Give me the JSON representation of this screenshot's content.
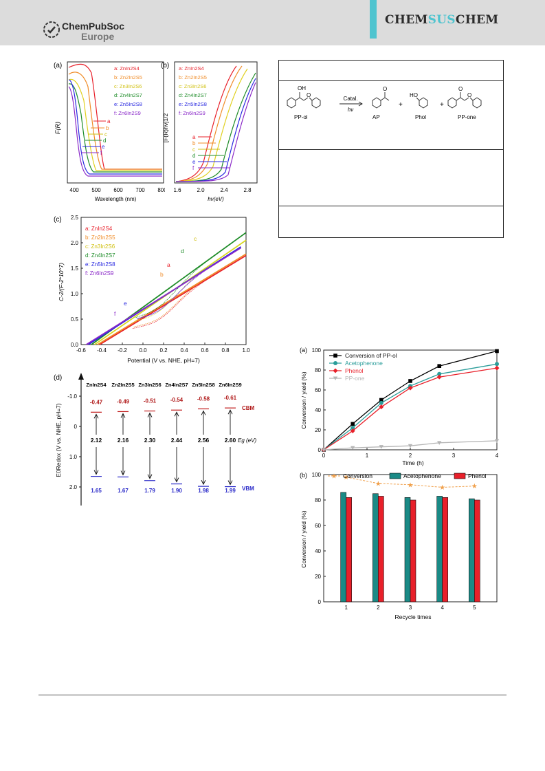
{
  "header": {
    "logo_line1": "ChemPubSoc",
    "logo_line2": "Europe",
    "journal_part1": "CHEM",
    "journal_part2": "SUS",
    "journal_part3": "CHEM",
    "accent_color": "#4fc4cf"
  },
  "figure_left": {
    "panel_a": {
      "tag": "(a)",
      "ylabel": "F(R)",
      "xlabel": "Wavelength (nm)",
      "xticks": [
        "400",
        "500",
        "600",
        "700",
        "800"
      ],
      "legend": [
        "a: ZnIn2S4",
        "b: Zn2In2S5",
        "c: Zn3In2S6",
        "d: Zn4In2S7",
        "e: Zn5In2S8",
        "f: Zn6In2S9"
      ],
      "curve_letters": [
        "a",
        "b",
        "c",
        "d",
        "e",
        "f"
      ]
    },
    "panel_b": {
      "tag": "(b)",
      "ylabel": "[F(R)hν]1/2",
      "xlabel": "hν(eV)",
      "xticks": [
        "1.6",
        "2.0",
        "2.4",
        "2.8"
      ],
      "legend": [
        "a: ZnIn2S4",
        "b: Zn2In2S5",
        "c: Zn3In2S6",
        "d: Zn4In2S7",
        "e: Zn5In2S8",
        "f: Zn6In2S9"
      ],
      "curve_letters": [
        "a",
        "b",
        "c",
        "d",
        "e",
        "f"
      ]
    },
    "panel_c": {
      "tag": "(c)",
      "ylabel": "C-2/(F-2*10^7)",
      "xlabel": "Potential (V vs. NHE, pH=7)",
      "xticks": [
        "-0.6",
        "-0.4",
        "-0.2",
        "0.0",
        "0.2",
        "0.4",
        "0.6",
        "0.8",
        "1.0"
      ],
      "yticks": [
        "0.0",
        "0.5",
        "1.0",
        "1.5",
        "2.0",
        "2.5"
      ],
      "legend": [
        "a: ZnIn2S4",
        "b: Zn2In2S5",
        "c: Zn3In2S6",
        "d: Zn4In2S7",
        "e: Zn5In2S8",
        "f: Zn6In2S9"
      ],
      "curve_letters": [
        "a",
        "b",
        "c",
        "d",
        "e",
        "f"
      ]
    },
    "panel_d": {
      "tag": "(d)",
      "ylabel": "E0Redox (V vs. NHE, pH=7)",
      "yticks": [
        "-1.0",
        "0",
        "1.0",
        "2.0"
      ],
      "compounds": [
        "ZnIn2S4",
        "Zn2In2S5",
        "Zn3In2S6",
        "Zn4In2S7",
        "Zn5In2S8",
        "Zn6In2S9"
      ],
      "cbm": [
        "-0.47",
        "-0.49",
        "-0.51",
        "-0.54",
        "-0.58",
        "-0.61"
      ],
      "eg": [
        "2.12",
        "2.16",
        "2.30",
        "2.44",
        "2.56",
        "2.60"
      ],
      "vbm": [
        "1.65",
        "1.67",
        "1.79",
        "1.90",
        "1.98",
        "1.99"
      ],
      "cbm_label": "CBM",
      "vbm_label": "VBM",
      "eg_label": "Eg (eV)"
    }
  },
  "scheme": {
    "reagent_top": "Catal.",
    "reagent_bottom": "hν",
    "labels": [
      "PP-ol",
      "AP",
      "Phol",
      "PP-one"
    ],
    "oh_label": "OH",
    "ho_label": "HO",
    "o_label": "O",
    "plus": "+"
  },
  "figure_right": {
    "panel_a": {
      "tag": "(a)",
      "ylabel": "Conversion / yield (%)",
      "xlabel": "Time (h)",
      "xticks": [
        "0",
        "1",
        "2",
        "3",
        "4"
      ],
      "yticks": [
        "0",
        "20",
        "40",
        "60",
        "80",
        "100"
      ],
      "legend": [
        "Conversion of PP-ol",
        "Acetophenone",
        "Phenol",
        "PP-one"
      ]
    },
    "panel_b": {
      "tag": "(b)",
      "ylabel": "Conversion / yield (%)",
      "xlabel": "Recycle times",
      "xticks": [
        "1",
        "2",
        "3",
        "4",
        "5"
      ],
      "yticks": [
        "0",
        "20",
        "40",
        "60",
        "80",
        "100"
      ],
      "legend": [
        "Conversion",
        "Acetophenone",
        "Phenol"
      ]
    }
  },
  "chart_data": [
    {
      "type": "line",
      "title": "",
      "xlabel": "Time (h)",
      "ylabel": "Conversion / yield (%)",
      "xlim": [
        0,
        4
      ],
      "ylim": [
        0,
        100
      ],
      "x": [
        0,
        0.67,
        1.33,
        2,
        2.67,
        4
      ],
      "series": [
        {
          "name": "Conversion of PP-ol",
          "color": "#000000",
          "values": [
            0,
            26,
            50,
            69,
            84,
            99
          ]
        },
        {
          "name": "Acetophenone",
          "color": "#2a9d9a",
          "values": [
            0,
            22,
            47,
            64,
            76,
            86
          ]
        },
        {
          "name": "Phenol",
          "color": "#e8202a",
          "values": [
            0,
            19,
            43,
            62,
            73,
            82
          ]
        },
        {
          "name": "PP-one",
          "color": "#b5b5b5",
          "values": [
            0,
            2,
            3,
            4,
            7,
            9
          ]
        }
      ]
    },
    {
      "type": "bar",
      "title": "",
      "xlabel": "Recycle times",
      "ylabel": "Conversion / yield (%)",
      "ylim": [
        0,
        100
      ],
      "categories": [
        "1",
        "2",
        "3",
        "4",
        "5"
      ],
      "series": [
        {
          "name": "Conversion",
          "color": "#f0a04b",
          "values": [
            98,
            93,
            92,
            90,
            91
          ]
        },
        {
          "name": "Acetophenone",
          "color": "#1a8a86",
          "values": [
            86,
            85,
            82,
            83,
            81
          ]
        },
        {
          "name": "Phenol",
          "color": "#e8202a",
          "values": [
            82,
            83,
            80,
            82,
            80
          ]
        }
      ]
    },
    {
      "type": "line",
      "title": "",
      "xlabel": "Potential (V vs. NHE, pH=7)",
      "ylabel": "C-2/(F-2*10^7)",
      "xlim": [
        -0.6,
        1.0
      ],
      "ylim": [
        0,
        2.5
      ],
      "series": [
        {
          "name": "a: ZnIn2S4",
          "color": "#e8202a",
          "x": [
            -0.42,
            1.0
          ],
          "values": [
            0,
            1.75
          ]
        },
        {
          "name": "b: Zn2In2S5",
          "color": "#f08c28",
          "x": [
            -0.44,
            1.0
          ],
          "values": [
            0,
            1.78
          ]
        },
        {
          "name": "c: Zn3In2S6",
          "color": "#d8d820",
          "x": [
            -0.47,
            1.0
          ],
          "values": [
            0,
            2.05
          ]
        },
        {
          "name": "d: Zn4In2S7",
          "color": "#1e8c28",
          "x": [
            -0.5,
            1.0
          ],
          "values": [
            0,
            2.2
          ]
        },
        {
          "name": "e: Zn5In2S8",
          "color": "#2828e0",
          "x": [
            -0.53,
            0.95
          ],
          "values": [
            0,
            1.92
          ]
        },
        {
          "name": "f: Zn6In2S9",
          "color": "#8a28c8",
          "x": [
            -0.55,
            0.95
          ],
          "values": [
            0,
            1.9
          ]
        }
      ]
    }
  ]
}
